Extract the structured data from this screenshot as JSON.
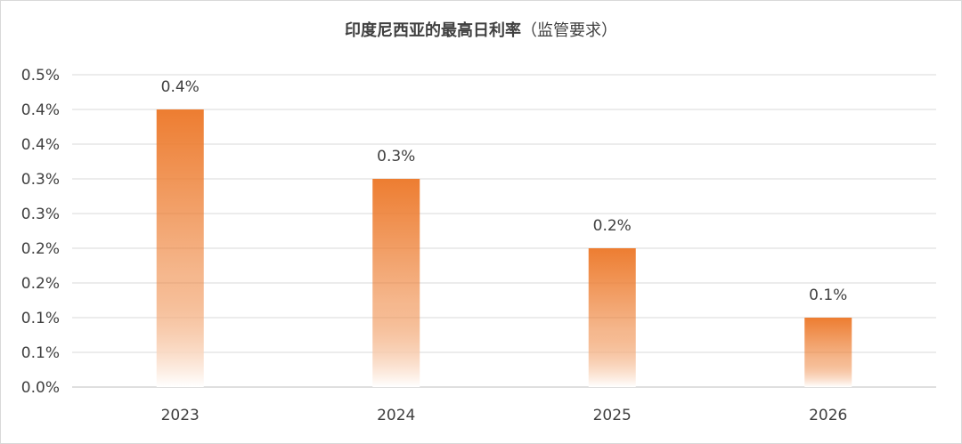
{
  "chart_data": {
    "type": "bar",
    "title": "印度尼西亚的最高日利率",
    "subtitle": "（监管要求）",
    "categories": [
      "2023",
      "2024",
      "2025",
      "2026"
    ],
    "values": [
      0.4,
      0.3,
      0.2,
      0.1
    ],
    "value_labels": [
      "0.4%",
      "0.3%",
      "0.2%",
      "0.1%"
    ],
    "y_ticks": [
      0.0,
      0.05,
      0.1,
      0.15,
      0.2,
      0.25,
      0.3,
      0.35,
      0.4,
      0.45
    ],
    "y_tick_labels": [
      "0.0%",
      "0.1%",
      "0.1%",
      "0.2%",
      "0.2%",
      "0.3%",
      "0.3%",
      "0.4%",
      "0.4%",
      "0.5%"
    ],
    "ylim": [
      0,
      0.45
    ],
    "xlabel": "",
    "ylabel": "",
    "grid": true,
    "legend": "none",
    "bar_color_top": "#ED7D31",
    "bar_color_bottom": "#FFFFFF"
  }
}
